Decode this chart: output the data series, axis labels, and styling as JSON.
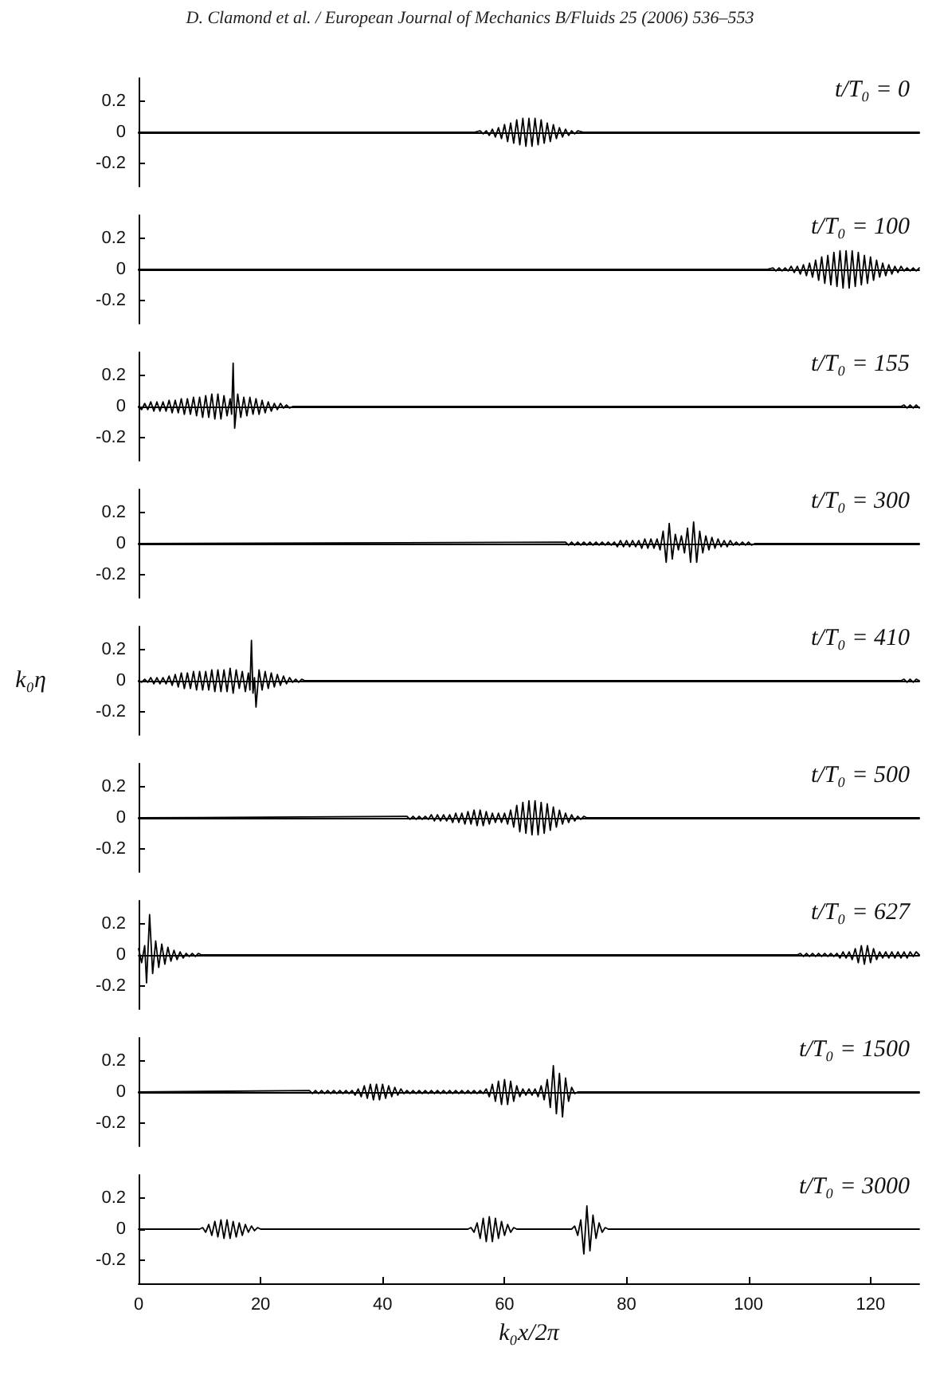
{
  "chart_data": [
    {
      "type": "line",
      "title": "t/T₀ = 0",
      "annotations": [
        "D. Clamond et al. / European Journal of Mechanics B/Fluids 25 (2006) 536–553"
      ],
      "color": "#000000",
      "xlim": [
        0,
        128
      ],
      "xticks": [
        0,
        20,
        40,
        60,
        80,
        100,
        120
      ],
      "ylim": [
        -0.35,
        0.35
      ],
      "yticks": [
        -0.2,
        0,
        0.2
      ],
      "tick_labels": "y",
      "x": [
        0,
        55,
        56,
        56.5,
        57,
        57.5,
        58,
        58.5,
        59,
        59.5,
        60,
        60.5,
        61,
        61.5,
        62,
        62.5,
        63,
        63.5,
        64,
        64.5,
        65,
        65.5,
        66,
        66.5,
        67,
        67.5,
        68,
        68.5,
        69,
        69.5,
        70,
        70.5,
        71,
        71.5,
        72,
        73,
        128
      ],
      "values": [
        0,
        0,
        0.01,
        -0.01,
        0.01,
        -0.02,
        0.02,
        -0.03,
        0.03,
        -0.04,
        0.05,
        -0.06,
        0.06,
        -0.07,
        0.08,
        -0.08,
        0.09,
        -0.09,
        0.09,
        -0.09,
        0.09,
        -0.08,
        0.08,
        -0.07,
        0.06,
        -0.06,
        0.05,
        -0.04,
        0.03,
        -0.03,
        0.02,
        -0.02,
        0.01,
        -0.01,
        0.01,
        0,
        0
      ]
    },
    {
      "type": "line",
      "title": "t/T₀ = 100",
      "color": "#000000",
      "xlim": [
        0,
        128
      ],
      "xticks": [
        0,
        20,
        40,
        60,
        80,
        100,
        120
      ],
      "ylim": [
        -0.35,
        0.35
      ],
      "yticks": [
        -0.2,
        0,
        0.2
      ],
      "tick_labels": "y",
      "x": [
        0,
        103,
        104,
        104.5,
        105,
        105.5,
        106,
        106.5,
        107,
        107.5,
        108,
        108.5,
        109,
        109.5,
        110,
        110.5,
        111,
        111.5,
        112,
        112.5,
        113,
        113.5,
        114,
        114.5,
        115,
        115.5,
        116,
        116.5,
        117,
        117.5,
        118,
        118.5,
        119,
        119.5,
        120,
        120.5,
        121,
        121.5,
        122,
        122.5,
        123,
        123.5,
        124,
        124.5,
        125,
        125.5,
        126,
        126.5,
        127,
        127.5,
        128
      ],
      "values": [
        0,
        0,
        0.01,
        -0.01,
        0.01,
        -0.01,
        0.01,
        -0.01,
        0.02,
        -0.02,
        0.02,
        -0.03,
        0.03,
        -0.04,
        0.04,
        -0.05,
        0.06,
        -0.07,
        0.08,
        -0.09,
        0.09,
        -0.1,
        0.11,
        -0.11,
        0.12,
        -0.12,
        0.12,
        -0.12,
        0.12,
        -0.11,
        0.11,
        -0.1,
        0.09,
        -0.09,
        0.08,
        -0.07,
        0.06,
        -0.05,
        0.04,
        -0.04,
        0.03,
        -0.03,
        0.02,
        -0.02,
        0.02,
        -0.01,
        0.01,
        -0.01,
        0.01,
        -0.01,
        0.01
      ]
    },
    {
      "type": "line",
      "title": "t/T₀ = 155",
      "color": "#000000",
      "xlim": [
        0,
        128
      ],
      "xticks": [
        0,
        20,
        40,
        60,
        80,
        100,
        120
      ],
      "ylim": [
        -0.35,
        0.35
      ],
      "yticks": [
        -0.2,
        0,
        0.2
      ],
      "tick_labels": "y",
      "x": [
        0,
        0.5,
        1,
        1.5,
        2,
        2.5,
        3,
        3.5,
        4,
        4.5,
        5,
        5.5,
        6,
        6.5,
        7,
        7.5,
        8,
        8.5,
        9,
        9.5,
        10,
        10.5,
        11,
        11.5,
        12,
        12.5,
        13,
        13.5,
        14,
        14.5,
        15,
        15.25,
        15.5,
        15.75,
        16.25,
        16.75,
        17.25,
        17.75,
        18.25,
        18.75,
        19.25,
        19.75,
        20.25,
        20.75,
        21.25,
        21.75,
        22.25,
        22.75,
        23.25,
        23.75,
        24.25,
        24.75,
        25.25,
        125,
        125.5,
        126,
        126.5,
        127,
        127.5,
        128
      ],
      "values": [
        0,
        -0.02,
        0.02,
        -0.02,
        0.03,
        -0.03,
        0.03,
        -0.03,
        0.03,
        -0.03,
        0.04,
        -0.04,
        0.04,
        -0.04,
        0.05,
        -0.05,
        0.05,
        -0.05,
        0.06,
        -0.06,
        0.06,
        -0.07,
        0.07,
        -0.07,
        0.08,
        -0.08,
        0.08,
        -0.08,
        0.07,
        -0.06,
        0.05,
        -0.05,
        0.28,
        -0.14,
        0.08,
        -0.07,
        0.06,
        -0.06,
        0.06,
        -0.05,
        0.05,
        -0.05,
        0.04,
        -0.04,
        0.03,
        -0.03,
        0.02,
        -0.02,
        0.02,
        -0.01,
        0.01,
        -0.01,
        0,
        0,
        0.01,
        -0.01,
        0.01,
        -0.01,
        0.01,
        -0.01
      ]
    },
    {
      "type": "line",
      "title": "t/T₀ = 300",
      "color": "#000000",
      "xlim": [
        0,
        128
      ],
      "xticks": [
        0,
        20,
        40,
        60,
        80,
        100,
        120
      ],
      "ylim": [
        -0.35,
        0.35
      ],
      "yticks": [
        -0.2,
        0,
        0.2
      ],
      "tick_labels": "y",
      "x": [
        0,
        70,
        70.5,
        71,
        71.5,
        72,
        72.5,
        73,
        73.5,
        74,
        74.5,
        75,
        75.5,
        76,
        76.5,
        77,
        77.5,
        78,
        78.5,
        79,
        79.5,
        80,
        80.5,
        81,
        81.5,
        82,
        82.5,
        83,
        83.5,
        84,
        84.5,
        85,
        85.5,
        86,
        86.5,
        87,
        87.5,
        88,
        88.5,
        89,
        89.5,
        90,
        90.5,
        91,
        91.5,
        92,
        92.5,
        93,
        93.5,
        94,
        94.5,
        95,
        95.5,
        96,
        96.5,
        97,
        97.5,
        98,
        98.5,
        99,
        99.5,
        100,
        100.5,
        101,
        128
      ],
      "values": [
        0,
        0.01,
        -0.01,
        0.01,
        -0.01,
        0.01,
        -0.01,
        0.01,
        -0.01,
        0.01,
        -0.01,
        0.01,
        -0.01,
        0.01,
        -0.01,
        0.01,
        -0.01,
        0.01,
        -0.02,
        0.02,
        -0.02,
        0.02,
        -0.02,
        0.02,
        -0.02,
        0.02,
        -0.03,
        0.03,
        -0.03,
        0.03,
        -0.03,
        0.03,
        -0.04,
        0.08,
        -0.12,
        0.13,
        -0.1,
        0.06,
        -0.04,
        0.05,
        -0.06,
        0.1,
        -0.12,
        0.14,
        -0.12,
        0.08,
        -0.06,
        0.05,
        -0.04,
        0.04,
        -0.03,
        0.03,
        -0.02,
        0.02,
        -0.02,
        0.02,
        -0.01,
        0.01,
        -0.01,
        0.01,
        -0.01,
        0.01,
        -0.01,
        0,
        0
      ]
    },
    {
      "type": "line",
      "title": "t/T₀ = 410",
      "ylabel": "k₀η",
      "color": "#000000",
      "xlim": [
        0,
        128
      ],
      "xticks": [
        0,
        20,
        40,
        60,
        80,
        100,
        120
      ],
      "ylim": [
        -0.35,
        0.35
      ],
      "yticks": [
        -0.2,
        0,
        0.2
      ],
      "tick_labels": "y",
      "x": [
        0,
        0.5,
        1,
        1.5,
        2,
        2.5,
        3,
        3.5,
        4,
        4.5,
        5,
        5.5,
        6,
        6.5,
        7,
        7.5,
        8,
        8.5,
        9,
        9.5,
        10,
        10.5,
        11,
        11.5,
        12,
        12.5,
        13,
        13.5,
        14,
        14.5,
        15,
        15.5,
        16,
        16.5,
        17,
        17.5,
        18,
        18.25,
        18.5,
        18.75,
        19,
        19.25,
        19.75,
        20.25,
        20.75,
        21.25,
        21.75,
        22.25,
        22.75,
        23.25,
        23.75,
        24.25,
        24.75,
        25.25,
        25.75,
        26.25,
        26.75,
        27.25,
        125,
        125.5,
        126,
        126.5,
        127,
        127.5,
        128
      ],
      "values": [
        0,
        -0.01,
        0.01,
        -0.01,
        0.02,
        -0.02,
        0.02,
        -0.02,
        0.02,
        -0.02,
        0.03,
        -0.03,
        0.04,
        -0.04,
        0.05,
        -0.05,
        0.05,
        -0.05,
        0.06,
        -0.06,
        0.06,
        -0.06,
        0.06,
        -0.06,
        0.07,
        -0.07,
        0.07,
        -0.07,
        0.07,
        -0.07,
        0.08,
        -0.08,
        0.07,
        -0.05,
        0.06,
        -0.07,
        0.05,
        -0.06,
        0.26,
        -0.08,
        0.02,
        -0.17,
        0.07,
        -0.06,
        0.06,
        -0.05,
        0.05,
        -0.04,
        0.04,
        -0.03,
        0.03,
        -0.02,
        0.02,
        -0.01,
        0.01,
        -0.01,
        0.01,
        0,
        0,
        0.01,
        -0.01,
        0.01,
        -0.01,
        0.01,
        0
      ]
    },
    {
      "type": "line",
      "title": "t/T₀ = 500",
      "color": "#000000",
      "xlim": [
        0,
        128
      ],
      "xticks": [
        0,
        20,
        40,
        60,
        80,
        100,
        120
      ],
      "ylim": [
        -0.35,
        0.35
      ],
      "yticks": [
        -0.2,
        0,
        0.2
      ],
      "tick_labels": "y",
      "x": [
        0,
        44,
        44.5,
        45,
        45.5,
        46,
        46.5,
        47,
        47.5,
        48,
        48.5,
        49,
        49.5,
        50,
        50.5,
        51,
        51.5,
        52,
        52.5,
        53,
        53.5,
        54,
        54.5,
        55,
        55.5,
        56,
        56.5,
        57,
        57.5,
        58,
        58.5,
        59,
        59.5,
        60,
        60.5,
        61,
        61.5,
        62,
        62.5,
        63,
        63.5,
        64,
        64.5,
        65,
        65.5,
        66,
        66.5,
        67,
        67.5,
        68,
        68.5,
        69,
        69.5,
        70,
        70.5,
        71,
        71.5,
        72,
        72.5,
        73,
        73.5,
        128
      ],
      "values": [
        0,
        0.01,
        -0.01,
        0.01,
        -0.01,
        0.01,
        -0.01,
        0.01,
        -0.01,
        0.02,
        -0.02,
        0.02,
        -0.02,
        0.02,
        -0.02,
        0.02,
        -0.03,
        0.03,
        -0.03,
        0.03,
        -0.04,
        0.04,
        -0.04,
        0.05,
        -0.05,
        0.05,
        -0.05,
        0.04,
        -0.04,
        0.03,
        -0.03,
        0.03,
        -0.03,
        0.03,
        -0.04,
        0.05,
        -0.06,
        0.08,
        -0.09,
        0.1,
        -0.1,
        0.11,
        -0.11,
        0.11,
        -0.11,
        0.1,
        -0.1,
        0.09,
        -0.08,
        0.07,
        -0.06,
        0.05,
        -0.04,
        0.03,
        -0.03,
        0.02,
        -0.02,
        0.01,
        -0.01,
        0.01,
        0,
        0
      ]
    },
    {
      "type": "line",
      "title": "t/T₀ = 627",
      "color": "#000000",
      "xlim": [
        0,
        128
      ],
      "xticks": [
        0,
        20,
        40,
        60,
        80,
        100,
        120
      ],
      "ylim": [
        -0.35,
        0.35
      ],
      "yticks": [
        -0.2,
        0,
        0.2
      ],
      "tick_labels": "y",
      "x": [
        0,
        0.5,
        1,
        1.3,
        1.8,
        2.3,
        2.8,
        3.3,
        3.8,
        4.3,
        4.8,
        5.3,
        5.8,
        6.3,
        6.8,
        7.3,
        7.8,
        8.3,
        8.8,
        9.3,
        9.8,
        10.3,
        108,
        108.5,
        109,
        109.5,
        110,
        110.5,
        111,
        111.5,
        112,
        112.5,
        113,
        113.5,
        114,
        114.5,
        115,
        115.5,
        116,
        116.5,
        117,
        117.5,
        118,
        118.5,
        119,
        119.5,
        120,
        120.5,
        121,
        121.5,
        122,
        122.5,
        123,
        123.5,
        124,
        124.5,
        125,
        125.5,
        126,
        126.5,
        127,
        127.5,
        128
      ],
      "values": [
        0.04,
        -0.05,
        0.06,
        -0.18,
        0.26,
        -0.12,
        0.09,
        -0.08,
        0.07,
        -0.06,
        0.05,
        -0.04,
        0.03,
        -0.03,
        0.02,
        -0.02,
        0.01,
        -0.01,
        0.01,
        -0.01,
        0.01,
        0,
        0,
        0.01,
        -0.01,
        0.01,
        -0.01,
        0.01,
        -0.01,
        0.01,
        -0.01,
        0.01,
        -0.01,
        0.01,
        -0.01,
        0.01,
        -0.02,
        0.02,
        -0.02,
        0.02,
        -0.03,
        0.04,
        -0.05,
        0.06,
        -0.06,
        0.06,
        -0.05,
        0.04,
        -0.03,
        0.02,
        -0.02,
        0.02,
        -0.02,
        0.02,
        -0.02,
        0.02,
        -0.02,
        0.02,
        -0.02,
        0.02,
        -0.01,
        0.02,
        0
      ]
    },
    {
      "type": "line",
      "title": "t/T₀ = 1500",
      "color": "#000000",
      "xlim": [
        0,
        128
      ],
      "xticks": [
        0,
        20,
        40,
        60,
        80,
        100,
        120
      ],
      "ylim": [
        -0.35,
        0.35
      ],
      "yticks": [
        -0.2,
        0,
        0.2
      ],
      "tick_labels": "y",
      "x": [
        0,
        28,
        28.5,
        29,
        29.5,
        30,
        30.5,
        31,
        31.5,
        32,
        32.5,
        33,
        33.5,
        34,
        34.5,
        35,
        35.5,
        36,
        36.5,
        37,
        37.5,
        38,
        38.5,
        39,
        39.5,
        40,
        40.5,
        41,
        41.5,
        42,
        42.5,
        43,
        43.5,
        44,
        44.5,
        45,
        45.5,
        46,
        46.5,
        47,
        47.5,
        48,
        48.5,
        49,
        49.5,
        50,
        50.5,
        51,
        51.5,
        52,
        52.5,
        53,
        53.5,
        54,
        54.5,
        55,
        55.5,
        56,
        56.5,
        57,
        57.5,
        58,
        58.5,
        59,
        59.5,
        60,
        60.5,
        61,
        61.5,
        62,
        62.5,
        63,
        63.5,
        64,
        64.5,
        65,
        65.5,
        66,
        66.5,
        67,
        67.5,
        68,
        68.5,
        69,
        69.5,
        70,
        70.5,
        71,
        71.5,
        72,
        128
      ],
      "values": [
        0,
        0.01,
        -0.01,
        0.01,
        -0.01,
        0.01,
        -0.01,
        0.01,
        -0.01,
        0.01,
        -0.01,
        0.01,
        -0.01,
        0.01,
        -0.01,
        0.01,
        -0.02,
        0.02,
        -0.03,
        0.04,
        -0.04,
        0.05,
        -0.05,
        0.05,
        -0.05,
        0.05,
        -0.04,
        0.04,
        -0.03,
        0.03,
        -0.02,
        0.02,
        -0.01,
        0.01,
        -0.01,
        0.01,
        -0.01,
        0.01,
        -0.01,
        0.01,
        -0.01,
        0.01,
        -0.01,
        0.01,
        -0.01,
        0.01,
        -0.01,
        0.01,
        -0.01,
        0.01,
        -0.01,
        0.01,
        -0.01,
        0.01,
        -0.01,
        0.01,
        -0.01,
        0.01,
        -0.01,
        0.02,
        -0.03,
        0.05,
        -0.06,
        0.07,
        -0.08,
        0.08,
        -0.08,
        0.07,
        -0.06,
        0.04,
        -0.03,
        0.02,
        -0.02,
        0.02,
        -0.02,
        0.02,
        -0.03,
        0.04,
        -0.05,
        0.08,
        -0.1,
        0.17,
        -0.14,
        0.12,
        -0.16,
        0.09,
        -0.06,
        0.03,
        -0.01,
        0,
        0
      ]
    },
    {
      "type": "line",
      "title": "t/T₀ = 3000",
      "xlabel": "k₀x/2π",
      "color": "#000000",
      "xlim": [
        0,
        128
      ],
      "xticks": [
        0,
        20,
        40,
        60,
        80,
        100,
        120
      ],
      "ylim": [
        -0.35,
        0.35
      ],
      "yticks": [
        -0.2,
        0,
        0.2
      ],
      "x": [
        0,
        10,
        10.5,
        11,
        11.5,
        12,
        12.5,
        13,
        13.5,
        14,
        14.5,
        15,
        15.5,
        16,
        16.5,
        17,
        17.5,
        18,
        18.5,
        19,
        19.5,
        20,
        54,
        54.5,
        55,
        55.5,
        56,
        56.5,
        57,
        57.5,
        58,
        58.5,
        59,
        59.5,
        60,
        60.5,
        61,
        61.5,
        62,
        71,
        71.5,
        72,
        72.5,
        73,
        73.5,
        74,
        74.5,
        75,
        75.5,
        76,
        76.5,
        77,
        128
      ],
      "values": [
        0,
        0,
        0.01,
        -0.02,
        0.03,
        -0.04,
        0.05,
        -0.05,
        0.06,
        -0.06,
        0.06,
        -0.06,
        0.05,
        -0.05,
        0.04,
        -0.04,
        0.03,
        -0.02,
        0.02,
        -0.01,
        0.01,
        0,
        0,
        0.01,
        -0.02,
        0.04,
        -0.06,
        0.07,
        -0.08,
        0.08,
        -0.08,
        0.07,
        -0.06,
        0.05,
        -0.04,
        0.03,
        -0.02,
        0.01,
        0,
        0,
        0.02,
        -0.04,
        0.06,
        -0.16,
        0.15,
        -0.14,
        0.09,
        -0.06,
        0.04,
        -0.02,
        0.01,
        0,
        0
      ]
    }
  ]
}
